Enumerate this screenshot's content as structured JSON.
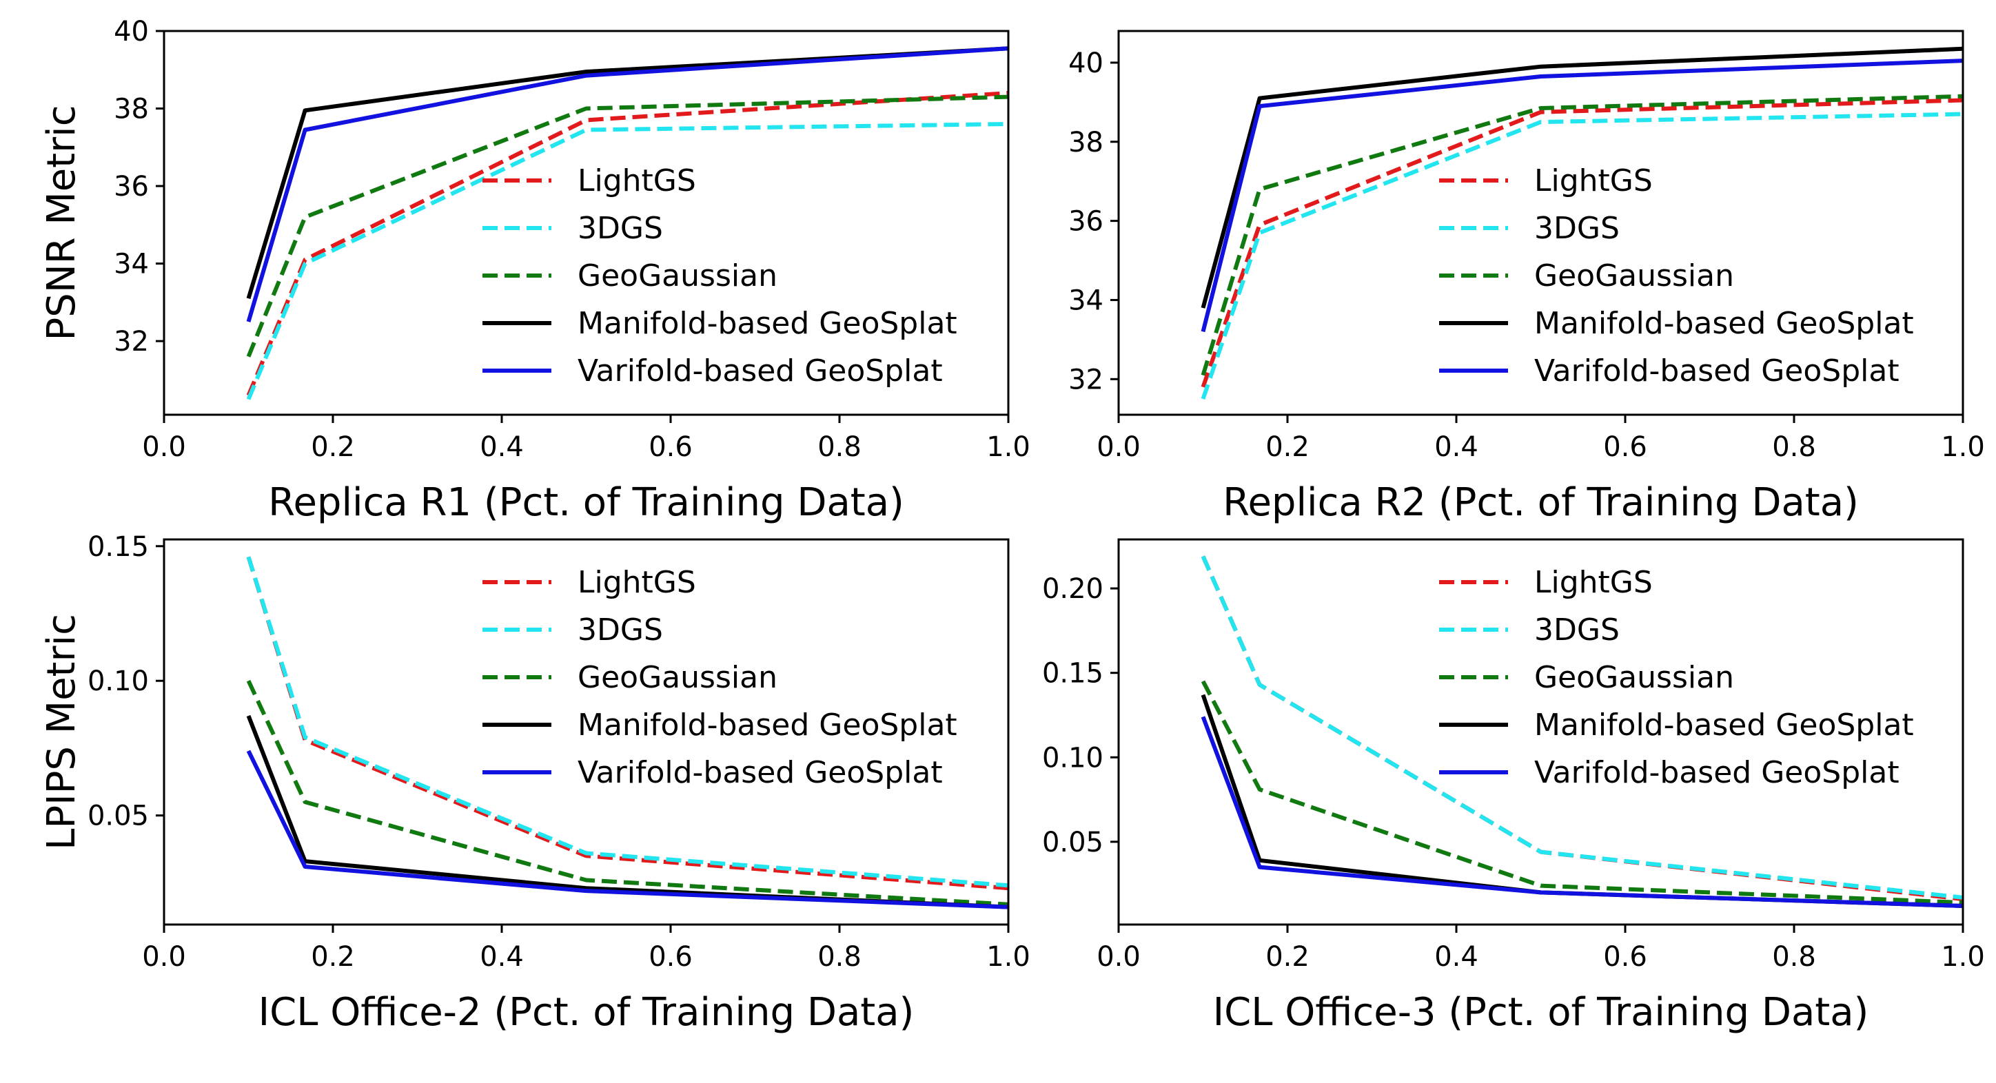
{
  "chart_data": [
    {
      "type": "line",
      "xlabel": "Replica R1 (Pct. of Training Data)",
      "ylabel": "PSNR Metric",
      "xlim": [
        0.0,
        1.0
      ],
      "ylim": [
        30.1,
        40.0
      ],
      "xticks": [
        "0.0",
        "0.2",
        "0.4",
        "0.6",
        "0.8",
        "1.0"
      ],
      "yticks": [
        "32",
        "34",
        "36",
        "38",
        "40"
      ],
      "grid": false,
      "legend_position": "lower-right",
      "x": [
        0.1,
        0.167,
        0.5,
        1.0
      ],
      "series": [
        {
          "name": "LightGS",
          "color": "#e31a1c",
          "dash": true,
          "values": [
            30.6,
            34.1,
            37.7,
            38.4
          ]
        },
        {
          "name": "3DGS",
          "color": "#22e5f0",
          "dash": true,
          "values": [
            30.5,
            34.0,
            37.45,
            37.6
          ]
        },
        {
          "name": "GeoGaussian",
          "color": "#107a10",
          "dash": true,
          "values": [
            31.6,
            35.2,
            38.0,
            38.3
          ]
        },
        {
          "name": "Manifold-based GeoSplat",
          "color": "#000000",
          "dash": false,
          "values": [
            33.1,
            37.95,
            38.95,
            39.55
          ]
        },
        {
          "name": "Varifold-based GeoSplat",
          "color": "#1212e0",
          "dash": false,
          "values": [
            32.5,
            37.45,
            38.85,
            39.55
          ]
        }
      ]
    },
    {
      "type": "line",
      "xlabel": "Replica R2 (Pct. of Training Data)",
      "ylabel": "",
      "xlim": [
        0.0,
        1.0
      ],
      "ylim": [
        31.1,
        40.8
      ],
      "xticks": [
        "0.0",
        "0.2",
        "0.4",
        "0.6",
        "0.8",
        "1.0"
      ],
      "yticks": [
        "32",
        "34",
        "36",
        "38",
        "40"
      ],
      "grid": false,
      "legend_position": "lower-right",
      "x": [
        0.1,
        0.167,
        0.5,
        1.0
      ],
      "series": [
        {
          "name": "LightGS",
          "color": "#e31a1c",
          "dash": true,
          "values": [
            31.8,
            35.9,
            38.75,
            39.05
          ]
        },
        {
          "name": "3DGS",
          "color": "#22e5f0",
          "dash": true,
          "values": [
            31.5,
            35.7,
            38.5,
            38.7
          ]
        },
        {
          "name": "GeoGaussian",
          "color": "#107a10",
          "dash": true,
          "values": [
            32.1,
            36.8,
            38.85,
            39.15
          ]
        },
        {
          "name": "Manifold-based GeoSplat",
          "color": "#000000",
          "dash": false,
          "values": [
            33.8,
            39.1,
            39.9,
            40.35
          ]
        },
        {
          "name": "Varifold-based GeoSplat",
          "color": "#1212e0",
          "dash": false,
          "values": [
            33.2,
            38.9,
            39.65,
            40.05
          ]
        }
      ]
    },
    {
      "type": "line",
      "xlabel": "ICL Office-2 (Pct. of Training Data)",
      "ylabel": "LPIPS Metric",
      "xlim": [
        0.0,
        1.0
      ],
      "ylim": [
        0.0095,
        0.1525
      ],
      "xticks": [
        "0.0",
        "0.2",
        "0.4",
        "0.6",
        "0.8",
        "1.0"
      ],
      "yticks": [
        "0.05",
        "0.10",
        "0.15"
      ],
      "grid": false,
      "legend_position": "upper-right",
      "x": [
        0.1,
        0.167,
        0.5,
        1.0
      ],
      "series": [
        {
          "name": "LightGS",
          "color": "#e31a1c",
          "dash": true,
          "values": [
            0.146,
            0.078,
            0.035,
            0.023
          ]
        },
        {
          "name": "3DGS",
          "color": "#22e5f0",
          "dash": true,
          "values": [
            0.146,
            0.079,
            0.036,
            0.024
          ]
        },
        {
          "name": "GeoGaussian",
          "color": "#107a10",
          "dash": true,
          "values": [
            0.1,
            0.055,
            0.026,
            0.017
          ]
        },
        {
          "name": "Manifold-based GeoSplat",
          "color": "#000000",
          "dash": false,
          "values": [
            0.087,
            0.033,
            0.023,
            0.016
          ]
        },
        {
          "name": "Varifold-based GeoSplat",
          "color": "#1212e0",
          "dash": false,
          "values": [
            0.074,
            0.031,
            0.022,
            0.016
          ]
        }
      ]
    },
    {
      "type": "line",
      "xlabel": "ICL Office-3 (Pct. of Training Data)",
      "ylabel": "",
      "xlim": [
        0.0,
        1.0
      ],
      "ylim": [
        0.001,
        0.229
      ],
      "xticks": [
        "0.0",
        "0.2",
        "0.4",
        "0.6",
        "0.8",
        "1.0"
      ],
      "yticks": [
        "0.05",
        "0.10",
        "0.15",
        "0.20"
      ],
      "grid": false,
      "legend_position": "upper-right",
      "x": [
        0.1,
        0.167,
        0.5,
        1.0
      ],
      "series": [
        {
          "name": "LightGS",
          "color": "#e31a1c",
          "dash": true,
          "values": [
            0.219,
            0.143,
            0.044,
            0.016
          ]
        },
        {
          "name": "3DGS",
          "color": "#22e5f0",
          "dash": true,
          "values": [
            0.219,
            0.143,
            0.044,
            0.017
          ]
        },
        {
          "name": "GeoGaussian",
          "color": "#107a10",
          "dash": true,
          "values": [
            0.145,
            0.081,
            0.024,
            0.014
          ]
        },
        {
          "name": "Manifold-based GeoSplat",
          "color": "#000000",
          "dash": false,
          "values": [
            0.137,
            0.039,
            0.02,
            0.012
          ]
        },
        {
          "name": "Varifold-based GeoSplat",
          "color": "#1212e0",
          "dash": false,
          "values": [
            0.124,
            0.035,
            0.02,
            0.012
          ]
        }
      ]
    }
  ]
}
